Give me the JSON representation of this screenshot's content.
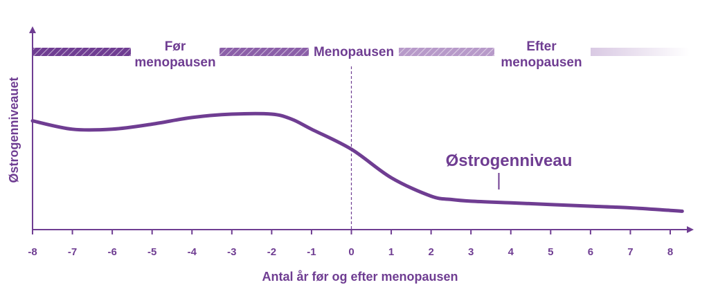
{
  "colors": {
    "primary": "#6f3d92",
    "band1": "#6f3d92",
    "band2": "#8b5fa8",
    "band3": "#b79ac9",
    "band4": "#d9c9e3"
  },
  "chart_data": {
    "type": "line",
    "xlabel": "Antal år før og efter menopausen",
    "ylabel": "Østrogenniveauet",
    "xlim": [
      -8,
      8.3
    ],
    "ylim": [
      0,
      10
    ],
    "x_ticks": [
      "-8",
      "-7",
      "-6",
      "-5",
      "-4",
      "-3",
      "-2",
      "-1",
      "0",
      "1",
      "2",
      "3",
      "4",
      "5",
      "6",
      "7",
      "8"
    ],
    "vertical_marker_x": 0,
    "phases": [
      {
        "label_lines": [
          "Før",
          "menopausen"
        ]
      },
      {
        "label_lines": [
          "Menopausen"
        ]
      },
      {
        "label_lines": [
          "Efter",
          "menopausen"
        ]
      }
    ],
    "annotation": {
      "text": "Østrogenniveau",
      "x": 3.7
    },
    "series": [
      {
        "x": [
          -8,
          -7,
          -6,
          -5,
          -4,
          -3,
          -2,
          -1.5,
          -1,
          0,
          1,
          2,
          2.5,
          3,
          4,
          5,
          6,
          7,
          8,
          8.3
        ],
        "values": [
          6.5,
          6.0,
          6.0,
          6.3,
          6.7,
          6.9,
          6.9,
          6.6,
          6.0,
          4.8,
          3.1,
          2.0,
          1.8,
          1.7,
          1.6,
          1.5,
          1.4,
          1.3,
          1.15,
          1.1
        ]
      }
    ]
  }
}
